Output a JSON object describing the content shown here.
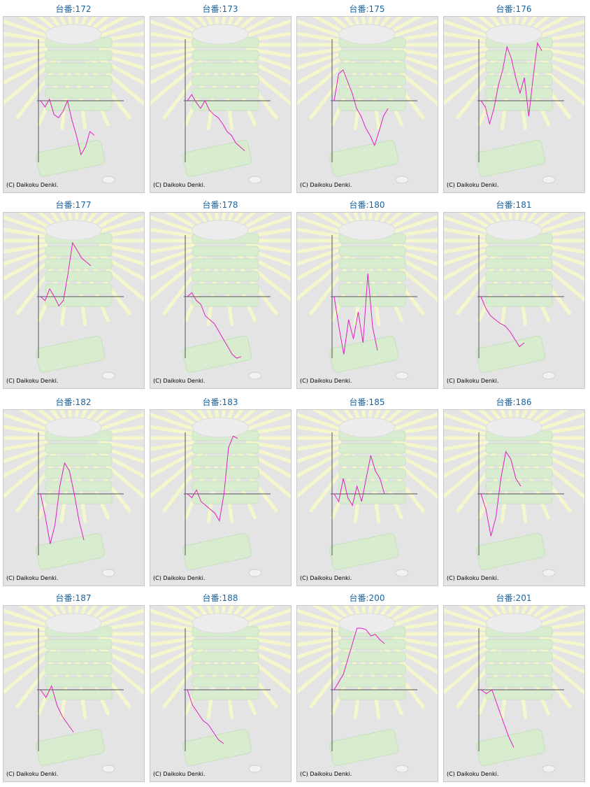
{
  "copyright": "(C) Daikoku Denki.",
  "line_color": "#e020c0",
  "chart_data": [
    {
      "type": "line",
      "title": "台番:172",
      "values": [
        0,
        -8,
        2,
        -18,
        -22,
        -14,
        0,
        -25,
        -45,
        -70,
        -60,
        -40,
        -45
      ]
    },
    {
      "type": "line",
      "title": "台番:173",
      "values": [
        0,
        8,
        -2,
        -10,
        0,
        -12,
        -18,
        -22,
        -30,
        -40,
        -45,
        -55,
        -60,
        -65
      ]
    },
    {
      "type": "line",
      "title": "台番:175",
      "values": [
        0,
        35,
        40,
        25,
        10,
        -10,
        -20,
        -35,
        -45,
        -58,
        -40,
        -20,
        -10
      ]
    },
    {
      "type": "line",
      "title": "台番:176",
      "values": [
        0,
        -8,
        -30,
        -10,
        20,
        40,
        70,
        55,
        30,
        10,
        30,
        -20,
        30,
        75,
        65
      ]
    },
    {
      "type": "line",
      "title": "台番:177",
      "values": [
        0,
        -5,
        10,
        0,
        -12,
        -5,
        30,
        70,
        60,
        50,
        45,
        40
      ]
    },
    {
      "type": "line",
      "title": "台番:178",
      "values": [
        0,
        5,
        -5,
        -10,
        -25,
        -30,
        -35,
        -45,
        -55,
        -65,
        -75,
        -80,
        -78
      ]
    },
    {
      "type": "line",
      "title": "台番:180",
      "values": [
        0,
        -40,
        -75,
        -30,
        -55,
        -20,
        -60,
        30,
        -40,
        -70
      ]
    },
    {
      "type": "line",
      "title": "台番:181",
      "values": [
        0,
        -15,
        -25,
        -30,
        -35,
        -38,
        -45,
        -55,
        -65,
        -60
      ]
    },
    {
      "type": "line",
      "title": "台番:182",
      "values": [
        0,
        -30,
        -65,
        -40,
        10,
        40,
        30,
        0,
        -35,
        -60
      ]
    },
    {
      "type": "line",
      "title": "台番:183",
      "values": [
        0,
        -5,
        5,
        -10,
        -15,
        -20,
        -25,
        -35,
        0,
        60,
        75,
        72
      ]
    },
    {
      "type": "line",
      "title": "台番:185",
      "values": [
        0,
        -10,
        20,
        -5,
        -15,
        10,
        -10,
        20,
        50,
        30,
        20,
        0
      ]
    },
    {
      "type": "line",
      "title": "台番:186",
      "values": [
        0,
        -20,
        -55,
        -30,
        20,
        55,
        45,
        20,
        10
      ]
    },
    {
      "type": "line",
      "title": "台番:187",
      "values": [
        0,
        -10,
        5,
        -20,
        -35,
        -45,
        -55
      ]
    },
    {
      "type": "line",
      "title": "台番:188",
      "values": [
        0,
        -20,
        -30,
        -40,
        -45,
        -55,
        -65,
        -70
      ]
    },
    {
      "type": "line",
      "title": "台番:200",
      "values": [
        0,
        10,
        20,
        40,
        60,
        80,
        82,
        78,
        70,
        72,
        65,
        60
      ]
    },
    {
      "type": "line",
      "title": "台番:201",
      "values": [
        0,
        -5,
        0,
        -20,
        -40,
        -60,
        -75
      ]
    }
  ]
}
